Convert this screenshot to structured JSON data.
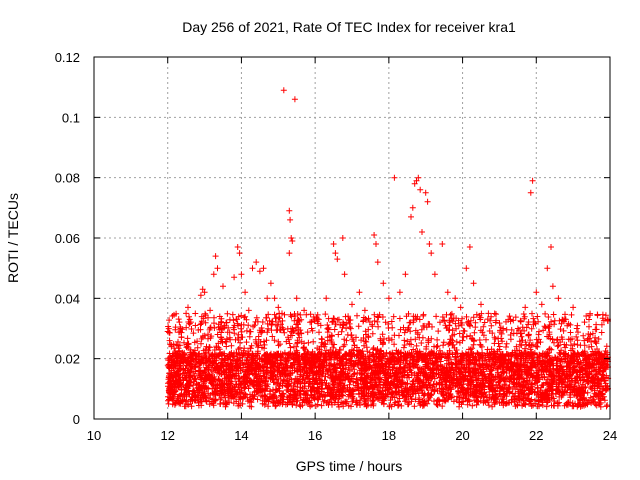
{
  "chart_data": {
    "type": "scatter",
    "title": "Day 256 of 2021, Rate Of TEC Index for receiver kra1",
    "xlabel": "GPS time / hours",
    "ylabel": "ROTI / TECUs",
    "xlim": [
      10,
      24
    ],
    "ylim": [
      0,
      0.12
    ],
    "xticks": [
      10,
      12,
      14,
      16,
      18,
      20,
      22,
      24
    ],
    "yticks": [
      0,
      0.02,
      0.04,
      0.06,
      0.08,
      0.1,
      0.12
    ],
    "x_tick_labels": [
      "10",
      "12",
      "14",
      "16",
      "18",
      "20",
      "22",
      "24"
    ],
    "y_tick_labels": [
      "0",
      "0.02",
      "0.04",
      "0.06",
      "0.08",
      "0.1",
      "0.12"
    ],
    "grid": true,
    "marker": "plus",
    "color": "#ff0000",
    "series": [
      {
        "points": [
          [
            12.0,
            0.029
          ],
          [
            12.05,
            0.026
          ],
          [
            12.1,
            0.024
          ],
          [
            12.2,
            0.022
          ],
          [
            12.35,
            0.03
          ],
          [
            12.5,
            0.035
          ],
          [
            12.55,
            0.037
          ],
          [
            12.6,
            0.033
          ],
          [
            12.75,
            0.031
          ],
          [
            12.9,
            0.041
          ],
          [
            12.95,
            0.043
          ],
          [
            13.0,
            0.042
          ],
          [
            13.15,
            0.036
          ],
          [
            13.25,
            0.048
          ],
          [
            13.3,
            0.054
          ],
          [
            13.35,
            0.05
          ],
          [
            13.5,
            0.044
          ],
          [
            13.6,
            0.032
          ],
          [
            13.8,
            0.047
          ],
          [
            13.9,
            0.057
          ],
          [
            13.95,
            0.055
          ],
          [
            14.0,
            0.048
          ],
          [
            14.1,
            0.042
          ],
          [
            14.2,
            0.036
          ],
          [
            14.3,
            0.05
          ],
          [
            14.4,
            0.052
          ],
          [
            14.5,
            0.049
          ],
          [
            14.6,
            0.05
          ],
          [
            14.7,
            0.04
          ],
          [
            14.8,
            0.045
          ],
          [
            14.9,
            0.04
          ],
          [
            15.0,
            0.037
          ],
          [
            15.1,
            0.035
          ],
          [
            15.15,
            0.109
          ],
          [
            15.3,
            0.069
          ],
          [
            15.32,
            0.066
          ],
          [
            15.35,
            0.06
          ],
          [
            15.38,
            0.059
          ],
          [
            15.3,
            0.055
          ],
          [
            15.45,
            0.106
          ],
          [
            15.5,
            0.04
          ],
          [
            15.7,
            0.036
          ],
          [
            15.9,
            0.03
          ],
          [
            16.1,
            0.033
          ],
          [
            16.3,
            0.04
          ],
          [
            16.5,
            0.058
          ],
          [
            16.55,
            0.055
          ],
          [
            16.6,
            0.053
          ],
          [
            16.75,
            0.06
          ],
          [
            16.8,
            0.048
          ],
          [
            17.0,
            0.038
          ],
          [
            17.2,
            0.042
          ],
          [
            17.35,
            0.036
          ],
          [
            17.6,
            0.061
          ],
          [
            17.65,
            0.058
          ],
          [
            17.7,
            0.052
          ],
          [
            17.85,
            0.045
          ],
          [
            18.0,
            0.04
          ],
          [
            18.15,
            0.08
          ],
          [
            18.3,
            0.042
          ],
          [
            18.45,
            0.048
          ],
          [
            18.6,
            0.067
          ],
          [
            18.65,
            0.07
          ],
          [
            18.7,
            0.078
          ],
          [
            18.75,
            0.079
          ],
          [
            18.8,
            0.08
          ],
          [
            18.85,
            0.076
          ],
          [
            18.9,
            0.062
          ],
          [
            19.0,
            0.075
          ],
          [
            19.05,
            0.072
          ],
          [
            19.1,
            0.058
          ],
          [
            19.15,
            0.055
          ],
          [
            19.25,
            0.048
          ],
          [
            19.45,
            0.058
          ],
          [
            19.6,
            0.042
          ],
          [
            19.8,
            0.04
          ],
          [
            19.95,
            0.037
          ],
          [
            20.1,
            0.05
          ],
          [
            20.2,
            0.057
          ],
          [
            20.3,
            0.045
          ],
          [
            20.5,
            0.038
          ],
          [
            20.7,
            0.035
          ],
          [
            20.9,
            0.032
          ],
          [
            21.1,
            0.03
          ],
          [
            21.3,
            0.033
          ],
          [
            21.5,
            0.03
          ],
          [
            21.7,
            0.037
          ],
          [
            21.85,
            0.075
          ],
          [
            21.9,
            0.079
          ],
          [
            22.0,
            0.042
          ],
          [
            22.15,
            0.038
          ],
          [
            22.3,
            0.05
          ],
          [
            22.4,
            0.057
          ],
          [
            22.45,
            0.044
          ],
          [
            22.6,
            0.04
          ],
          [
            22.8,
            0.033
          ],
          [
            23.0,
            0.037
          ],
          [
            23.1,
            0.03
          ],
          [
            23.3,
            0.026
          ],
          [
            23.5,
            0.024
          ],
          [
            23.7,
            0.022
          ],
          [
            23.9,
            0.02
          ]
        ],
        "dense_band": {
          "x_range": [
            12.0,
            23.95
          ],
          "typical_y_range": [
            0.004,
            0.022
          ],
          "peak_y_range": [
            0.025,
            0.035
          ]
        }
      }
    ]
  }
}
